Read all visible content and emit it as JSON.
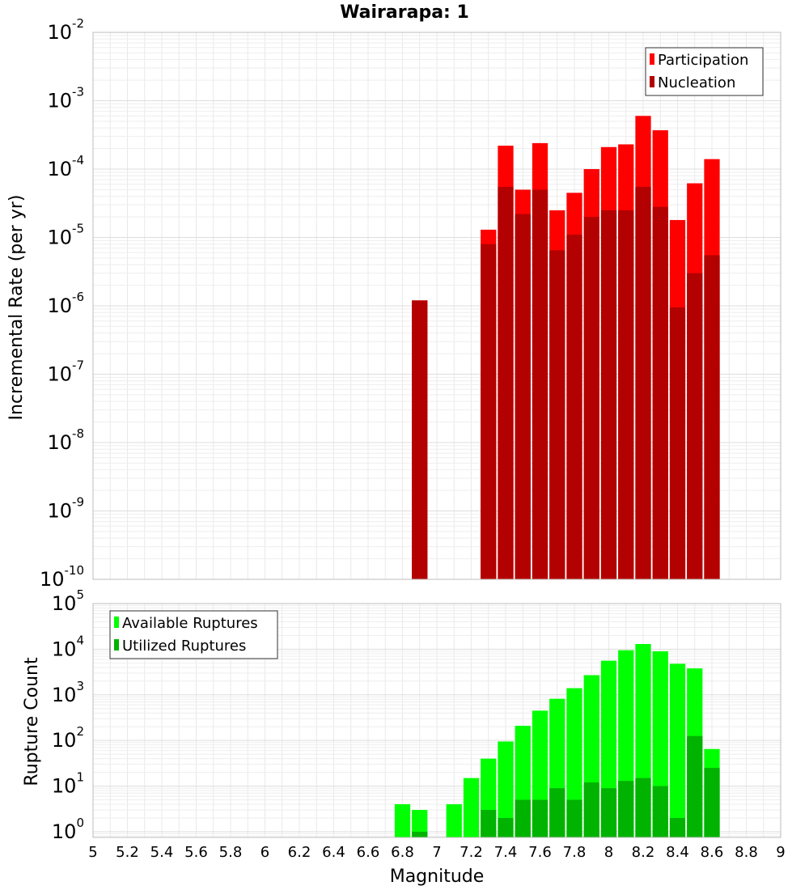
{
  "chart_data": [
    {
      "type": "bar",
      "title": "Wairarapa: 1",
      "xlabel": "",
      "ylabel": "Incremental Rate (per yr)",
      "yscale": "log",
      "xlim": [
        5,
        9
      ],
      "ylim": [
        1e-10,
        0.01
      ],
      "grid": true,
      "legend_position": "top-right",
      "bin_width": 0.1,
      "x": [
        6.9,
        7.3,
        7.4,
        7.5,
        7.6,
        7.7,
        7.8,
        7.9,
        8.0,
        8.1,
        8.2,
        8.3,
        8.4,
        8.5,
        8.6
      ],
      "series": [
        {
          "name": "Participation",
          "color": "#ff0000",
          "values": [
            1.2e-06,
            1.3e-05,
            0.00022,
            5e-05,
            0.00024,
            2.5e-05,
            4.5e-05,
            0.0001,
            0.00021,
            0.00023,
            0.0006,
            0.00037,
            1.8e-05,
            6.2e-05,
            0.00014
          ]
        },
        {
          "name": "Nucleation",
          "color": "#b30000",
          "values": [
            1.2e-06,
            8e-06,
            5.5e-05,
            2.2e-05,
            5e-05,
            6.5e-06,
            1.1e-05,
            2e-05,
            2.5e-05,
            2.5e-05,
            5.5e-05,
            2.8e-05,
            9.5e-07,
            3e-06,
            5.5e-06
          ]
        }
      ],
      "y_ticks": [
        {
          "base": "10",
          "exp": "-10"
        },
        {
          "base": "10",
          "exp": "-9"
        },
        {
          "base": "10",
          "exp": "-8"
        },
        {
          "base": "10",
          "exp": "-7"
        },
        {
          "base": "10",
          "exp": "-6"
        },
        {
          "base": "10",
          "exp": "-5"
        },
        {
          "base": "10",
          "exp": "-4"
        },
        {
          "base": "10",
          "exp": "-3"
        },
        {
          "base": "10",
          "exp": "-2"
        }
      ]
    },
    {
      "type": "bar",
      "xlabel": "Magnitude",
      "ylabel": "Rupture Count",
      "yscale": "log",
      "xlim": [
        5,
        9
      ],
      "ylim": [
        0.75,
        100000.0
      ],
      "grid": true,
      "legend_position": "top-left",
      "bin_width": 0.1,
      "x": [
        6.8,
        6.9,
        7.1,
        7.2,
        7.3,
        7.4,
        7.5,
        7.6,
        7.7,
        7.8,
        7.9,
        8.0,
        8.1,
        8.2,
        8.3,
        8.4,
        8.5,
        8.6
      ],
      "series": [
        {
          "name": "Available Ruptures",
          "color": "#00ff00",
          "values": [
            4,
            3,
            4,
            15,
            40,
            95,
            210,
            450,
            820,
            1400,
            2700,
            5600,
            9500,
            13000,
            9000,
            4800,
            3800,
            65
          ]
        },
        {
          "name": "Utilized Ruptures",
          "color": "#00b300",
          "values": [
            0,
            1,
            0,
            0,
            3,
            2,
            5,
            5,
            9,
            5,
            12,
            9,
            13,
            15,
            10,
            2,
            125,
            25
          ]
        }
      ],
      "x_ticks": [
        "5",
        "5.2",
        "5.4",
        "5.6",
        "5.8",
        "6",
        "6.2",
        "6.4",
        "6.6",
        "6.8",
        "7",
        "7.2",
        "7.4",
        "7.6",
        "7.8",
        "8",
        "8.2",
        "8.4",
        "8.6",
        "8.8",
        "9"
      ],
      "x_tick_values": [
        5,
        5.2,
        5.4,
        5.6,
        5.8,
        6,
        6.2,
        6.4,
        6.6,
        6.8,
        7,
        7.2,
        7.4,
        7.6,
        7.8,
        8,
        8.2,
        8.4,
        8.6,
        8.8,
        9
      ],
      "y_ticks": [
        {
          "base": "10",
          "exp": "0"
        },
        {
          "base": "10",
          "exp": "1"
        },
        {
          "base": "10",
          "exp": "2"
        },
        {
          "base": "10",
          "exp": "3"
        },
        {
          "base": "10",
          "exp": "4"
        },
        {
          "base": "10",
          "exp": "5"
        }
      ]
    }
  ]
}
